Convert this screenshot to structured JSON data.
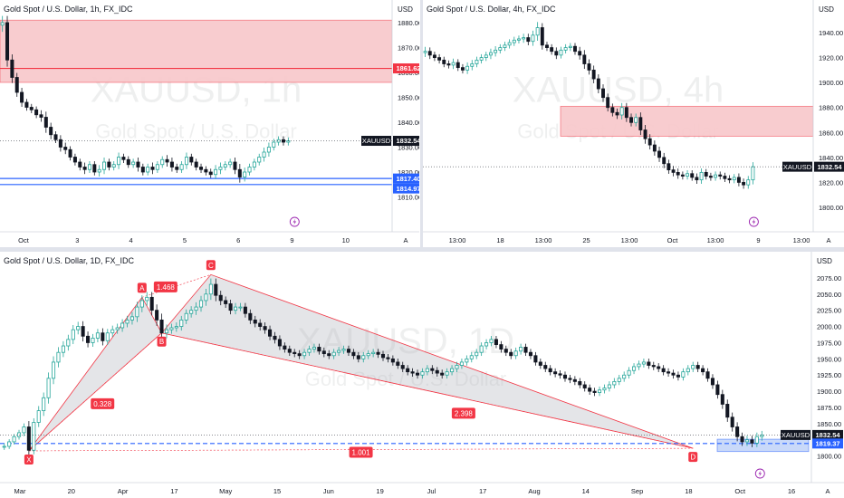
{
  "chart_data": [
    {
      "id": "gold-1h",
      "type": "candlestick",
      "title": "Gold Spot / U.S. Dollar, 1h, FX_IDC",
      "watermark": "XAUUSD, 1h",
      "watermark_sub": "Gold Spot / U.S. Dollar",
      "currency": "USD",
      "ylim": [
        1804,
        1884
      ],
      "y_ticks": [
        "1880.00",
        "1870.00",
        "1860.00",
        "1850.00",
        "1840.00",
        "1830.00",
        "1820.00",
        "1810.00"
      ],
      "x_ticks": [
        "Oct",
        "3",
        "4",
        "5",
        "6",
        "9",
        "10"
      ],
      "price_tags": [
        {
          "label": "XAUUSD",
          "value": "1832.54",
          "style": "dark"
        },
        {
          "label": "",
          "value": "1861.62",
          "style": "red"
        },
        {
          "label": "",
          "value": "1817.40",
          "style": "blue"
        },
        {
          "label": "",
          "value": "1814.97",
          "style": "blue"
        }
      ],
      "zone": {
        "from": 1856,
        "to": 1881
      },
      "lines": [
        1861.62,
        1817.4,
        1814.97
      ],
      "scale_button": "A",
      "colors": {
        "up": "#26a69a",
        "down": "#131722",
        "zone": "#f7c6ca",
        "resistance": "#f23645",
        "support": "#2962ff"
      },
      "close": [
        1880,
        1865,
        1858,
        1852,
        1848,
        1846,
        1845,
        1843,
        1842,
        1838,
        1835,
        1833,
        1830,
        1829,
        1826,
        1824,
        1822,
        1821,
        1823,
        1820,
        1821,
        1824,
        1822,
        1823,
        1826,
        1825,
        1823,
        1824,
        1822,
        1820,
        1822,
        1821,
        1823,
        1825,
        1824,
        1822,
        1821,
        1823,
        1826,
        1824,
        1822,
        1821,
        1820,
        1819,
        1821,
        1822,
        1823,
        1824,
        1821,
        1818,
        1820,
        1822,
        1824,
        1826,
        1828,
        1830,
        1832,
        1833,
        1832,
        1832.54
      ],
      "range": [
        6,
        6,
        5,
        4,
        4,
        3,
        3,
        3,
        4,
        5,
        4,
        3,
        4,
        4,
        3,
        3,
        3,
        4,
        3,
        3,
        4,
        4,
        3,
        3,
        4,
        3,
        3,
        3,
        4,
        3,
        3,
        4,
        3,
        3,
        4,
        4,
        3,
        3,
        4,
        3,
        3,
        3,
        3,
        3,
        4,
        4,
        3,
        3,
        4,
        5,
        4,
        3,
        3,
        3,
        4,
        4,
        3,
        3,
        3,
        3
      ]
    },
    {
      "id": "gold-4h",
      "type": "candlestick",
      "title": "Gold Spot / U.S. Dollar, 4h, FX_IDC",
      "watermark": "XAUUSD, 4h",
      "watermark_sub": "Gold Spot / U.S. Dollar",
      "currency": "USD",
      "ylim": [
        1792,
        1956
      ],
      "y_ticks": [
        "1940.00",
        "1920.00",
        "1900.00",
        "1880.00",
        "1860.00",
        "1840.00",
        "1820.00",
        "1800.00"
      ],
      "x_ticks": [
        "13:00",
        "18",
        "13:00",
        "25",
        "13:00",
        "Oct",
        "13:00",
        "9",
        "13:00"
      ],
      "price_tags": [
        {
          "label": "XAUUSD",
          "value": "1832.54",
          "style": "dark"
        }
      ],
      "zone": {
        "from": 1857,
        "to": 1881
      },
      "scale_button": "A",
      "colors": {
        "up": "#26a69a",
        "down": "#131722",
        "zone": "#f7c6ca"
      },
      "close": [
        1925,
        1922,
        1920,
        1918,
        1915,
        1914,
        1916,
        1912,
        1910,
        1913,
        1915,
        1918,
        1920,
        1922,
        1924,
        1926,
        1928,
        1930,
        1932,
        1934,
        1935,
        1936,
        1933,
        1938,
        1944,
        1930,
        1928,
        1925,
        1922,
        1926,
        1928,
        1929,
        1925,
        1922,
        1915,
        1910,
        1903,
        1895,
        1888,
        1880,
        1876,
        1874,
        1880,
        1872,
        1868,
        1872,
        1862,
        1855,
        1850,
        1845,
        1840,
        1835,
        1830,
        1828,
        1826,
        1825,
        1827,
        1824,
        1822,
        1828,
        1825,
        1824,
        1826,
        1825,
        1823,
        1822,
        1824,
        1820,
        1818,
        1822,
        1832.54
      ],
      "range": [
        8,
        7,
        6,
        6,
        6,
        6,
        7,
        6,
        6,
        7,
        7,
        6,
        6,
        6,
        7,
        7,
        6,
        6,
        6,
        6,
        6,
        7,
        7,
        8,
        10,
        8,
        6,
        6,
        7,
        6,
        6,
        6,
        6,
        8,
        9,
        8,
        8,
        8,
        8,
        7,
        7,
        7,
        8,
        8,
        7,
        7,
        9,
        9,
        8,
        8,
        8,
        8,
        7,
        7,
        7,
        6,
        6,
        6,
        7,
        7,
        6,
        6,
        6,
        6,
        6,
        6,
        6,
        7,
        7,
        7,
        8
      ]
    },
    {
      "id": "gold-1d",
      "type": "candlestick",
      "title": "Gold Spot / U.S. Dollar, 1D, FX_IDC",
      "watermark": "XAUUSD, 1D",
      "watermark_sub": "Gold Spot / U.S. Dollar",
      "currency": "USD",
      "ylim": [
        1787,
        2093
      ],
      "y_ticks": [
        "2075.00",
        "2050.00",
        "2025.00",
        "2000.00",
        "1975.00",
        "1950.00",
        "1925.00",
        "1900.00",
        "1875.00",
        "1850.00",
        "1800.00"
      ],
      "x_ticks": [
        "Mar",
        "20",
        "Apr",
        "17",
        "May",
        "15",
        "Jun",
        "19",
        "Jul",
        "17",
        "Aug",
        "14",
        "Sep",
        "18",
        "Oct",
        "16"
      ],
      "price_tags": [
        {
          "label": "XAUUSD",
          "value": "1832.54",
          "style": "dark"
        },
        {
          "label": "",
          "value": "1819.37",
          "style": "blue"
        }
      ],
      "pattern": {
        "points": [
          {
            "label": "X",
            "i": 5,
            "price": 1808
          },
          {
            "label": "A",
            "i": 28,
            "price": 2045
          },
          {
            "label": "B",
            "i": 32,
            "price": 1990
          },
          {
            "label": "C",
            "i": 42,
            "price": 2080
          },
          {
            "label": "D",
            "i": 140,
            "price": 1812
          }
        ],
        "ratios": [
          {
            "value": "0.328"
          },
          {
            "value": "1.468"
          },
          {
            "value": "2.398"
          },
          {
            "value": "1.001"
          }
        ]
      },
      "zone": {
        "from": 1807,
        "to": 1826
      },
      "lines": [
        1819.37
      ],
      "scale_button": "A",
      "colors": {
        "up": "#26a69a",
        "down": "#131722",
        "pattern": "#f23645",
        "pattern_fill": "#b2b5be",
        "support": "#2962ff"
      },
      "close": [
        1815,
        1822,
        1830,
        1836,
        1845,
        1809,
        1852,
        1870,
        1890,
        1920,
        1945,
        1960,
        1970,
        1980,
        1995,
        2000,
        1985,
        1975,
        1982,
        1990,
        1978,
        1990,
        1995,
        1998,
        2005,
        2010,
        2015,
        2030,
        2040,
        2045,
        2025,
        2010,
        1990,
        1995,
        1998,
        2000,
        2010,
        2020,
        2025,
        2030,
        2040,
        2050,
        2065,
        2048,
        2040,
        2035,
        2025,
        2030,
        2030,
        2020,
        2010,
        2005,
        2000,
        1995,
        1985,
        1980,
        1970,
        1965,
        1960,
        1958,
        1955,
        1960,
        1965,
        1968,
        1962,
        1958,
        1955,
        1960,
        1963,
        1965,
        1960,
        1955,
        1950,
        1955,
        1958,
        1960,
        1957,
        1952,
        1950,
        1945,
        1940,
        1935,
        1930,
        1928,
        1925,
        1930,
        1935,
        1932,
        1928,
        1925,
        1930,
        1935,
        1940,
        1945,
        1950,
        1955,
        1960,
        1970,
        1975,
        1980,
        1972,
        1965,
        1960,
        1955,
        1962,
        1968,
        1960,
        1955,
        1945,
        1940,
        1935,
        1930,
        1927,
        1925,
        1920,
        1918,
        1915,
        1910,
        1905,
        1900,
        1898,
        1902,
        1905,
        1910,
        1915,
        1920,
        1925,
        1932,
        1938,
        1942,
        1945,
        1940,
        1938,
        1935,
        1930,
        1928,
        1925,
        1922,
        1930,
        1935,
        1940,
        1935,
        1930,
        1920,
        1910,
        1895,
        1880,
        1860,
        1845,
        1830,
        1822,
        1825,
        1820,
        1830,
        1832.54
      ],
      "range": [
        10,
        9,
        9,
        10,
        12,
        20,
        14,
        16,
        18,
        20,
        20,
        18,
        16,
        16,
        16,
        16,
        18,
        16,
        14,
        14,
        16,
        14,
        14,
        14,
        14,
        14,
        16,
        18,
        18,
        18,
        18,
        20,
        22,
        18,
        14,
        14,
        14,
        14,
        14,
        16,
        16,
        18,
        20,
        20,
        16,
        14,
        14,
        14,
        14,
        14,
        14,
        14,
        14,
        14,
        14,
        14,
        14,
        12,
        12,
        12,
        12,
        12,
        12,
        12,
        12,
        12,
        12,
        12,
        12,
        12,
        12,
        12,
        12,
        12,
        12,
        12,
        12,
        12,
        12,
        12,
        12,
        12,
        12,
        12,
        12,
        12,
        12,
        12,
        12,
        12,
        12,
        12,
        12,
        12,
        12,
        12,
        12,
        12,
        12,
        12,
        12,
        12,
        12,
        12,
        12,
        12,
        12,
        12,
        12,
        12,
        12,
        12,
        12,
        12,
        12,
        12,
        12,
        12,
        12,
        12,
        12,
        12,
        12,
        12,
        12,
        12,
        12,
        12,
        12,
        12,
        12,
        12,
        12,
        12,
        12,
        12,
        12,
        12,
        12,
        12,
        12,
        12,
        12,
        12,
        14,
        14,
        16,
        16,
        16,
        16,
        14,
        14,
        14,
        14,
        14
      ]
    }
  ]
}
